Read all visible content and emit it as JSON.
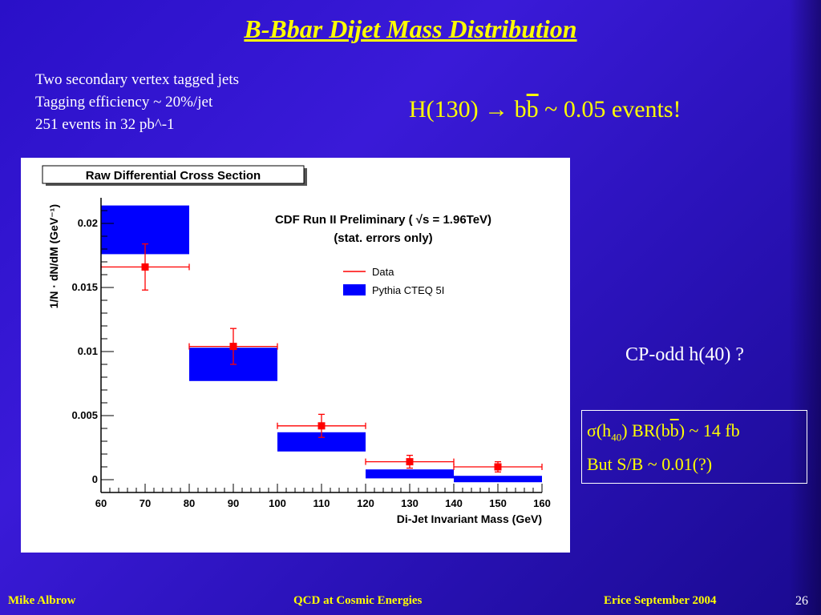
{
  "slide": {
    "title": "B-Bbar Dijet Mass Distribution",
    "notes": [
      "Two secondary vertex tagged jets",
      "Tagging efficiency ~ 20%/jet",
      "251 events in 32 pb^-1"
    ],
    "higgs": {
      "pre": "H(130) → b",
      "bbar": "b",
      "post": " ~ 0.05 events!"
    },
    "cp_odd": "CP-odd h(40) ?",
    "box": {
      "line1_pre": "σ(h",
      "line1_sub": "40",
      "line1_mid": ") BR(b",
      "line1_bbar": "b",
      "line1_post": ") ~ 14 fb",
      "line2": "But S/B ~ 0.01(?)"
    },
    "footer": {
      "left": "Mike Albrow",
      "center": "QCD at Cosmic Energies",
      "right": "Erice September 2004",
      "page": "26"
    }
  },
  "chart_data": {
    "type": "bar",
    "title": "Raw Differential Cross Section",
    "annotation": [
      "CDF Run II Preliminary ( √s = 1.96TeV)",
      "(stat. errors only)"
    ],
    "xlabel": "Di-Jet Invariant Mass (GeV)",
    "ylabel": "1/N · dN/dM (GeV⁻¹)",
    "xlim": [
      60,
      160
    ],
    "ylim": [
      -0.001,
      0.022
    ],
    "xticks": [
      60,
      70,
      80,
      90,
      100,
      110,
      120,
      130,
      140,
      150,
      160
    ],
    "yticks": [
      0,
      0.005,
      0.01,
      0.015,
      0.02
    ],
    "ytick_labels": [
      "0",
      "0.005",
      "0.01",
      "0.015",
      "0.02"
    ],
    "legend": {
      "placement": "top-right",
      "entries": [
        "Data",
        "Pythia CTEQ 5I"
      ]
    },
    "pythia_bins": [
      {
        "x0": 60,
        "x1": 80,
        "ylow": 0.0176,
        "yhigh": 0.0214
      },
      {
        "x0": 80,
        "x1": 100,
        "ylow": 0.0077,
        "yhigh": 0.0103
      },
      {
        "x0": 100,
        "x1": 120,
        "ylow": 0.0022,
        "yhigh": 0.0037
      },
      {
        "x0": 120,
        "x1": 140,
        "ylow": 0.0001,
        "yhigh": 0.0008
      },
      {
        "x0": 140,
        "x1": 160,
        "ylow": -0.0002,
        "yhigh": 0.0003
      }
    ],
    "data_points": [
      {
        "x": 70,
        "y": 0.0166,
        "xerr": 10,
        "yerr": 0.0018
      },
      {
        "x": 90,
        "y": 0.0104,
        "xerr": 10,
        "yerr": 0.0014
      },
      {
        "x": 110,
        "y": 0.0042,
        "xerr": 10,
        "yerr": 0.0009
      },
      {
        "x": 130,
        "y": 0.0014,
        "xerr": 10,
        "yerr": 0.0005
      },
      {
        "x": 150,
        "y": 0.001,
        "xerr": 10,
        "yerr": 0.0004
      }
    ],
    "colors": {
      "pythia": "#0000ff",
      "data": "#ff0000"
    }
  }
}
